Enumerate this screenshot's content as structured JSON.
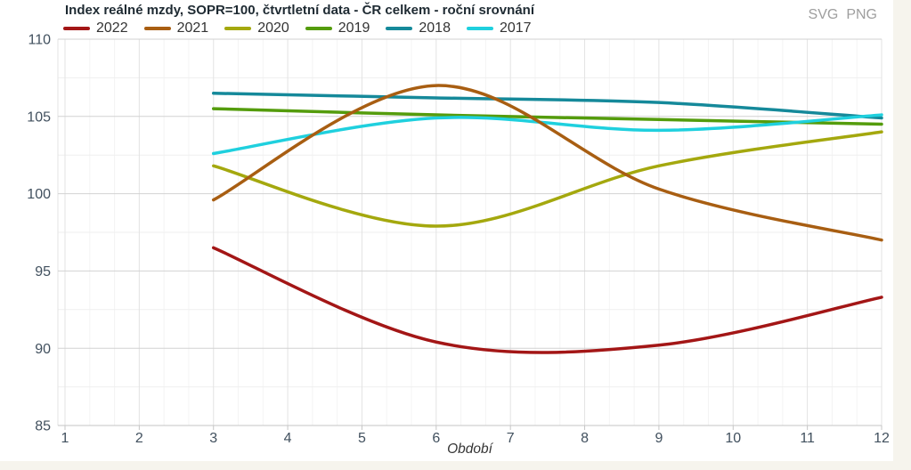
{
  "header": {
    "export_links": [
      {
        "label": "SVG"
      },
      {
        "label": "PNG"
      }
    ]
  },
  "chart_data": {
    "type": "line",
    "curve": "spline",
    "title": "Index reálné mzdy, SOPR=100, čtvrtletní data - ČR celkem - roční srovnání",
    "xlabel": "Období",
    "ylabel": "",
    "x": [
      3,
      6,
      9,
      12
    ],
    "xlim": [
      1,
      12
    ],
    "ylim": [
      85,
      110
    ],
    "x_ticks": [
      1,
      2,
      3,
      4,
      5,
      6,
      7,
      8,
      9,
      10,
      11,
      12
    ],
    "y_ticks": [
      85,
      90,
      95,
      100,
      105,
      110
    ],
    "grid": true,
    "legend_position": "top",
    "series": [
      {
        "name": "2022",
        "color": "#a31616",
        "values": [
          96.5,
          90.4,
          90.2,
          93.3
        ]
      },
      {
        "name": "2021",
        "color": "#a85e12",
        "values": [
          99.6,
          107.0,
          100.3,
          97.0
        ]
      },
      {
        "name": "2020",
        "color": "#a4a80e",
        "values": [
          101.8,
          97.9,
          101.8,
          104.0
        ]
      },
      {
        "name": "2019",
        "color": "#549c0c",
        "values": [
          105.5,
          105.1,
          104.8,
          104.5
        ]
      },
      {
        "name": "2018",
        "color": "#15899a",
        "values": [
          106.5,
          106.2,
          105.9,
          104.9
        ]
      },
      {
        "name": "2017",
        "color": "#1fd0de",
        "values": [
          102.6,
          104.9,
          104.1,
          105.1
        ]
      }
    ],
    "colors": {
      "grid_major_y": "#d2d2d2",
      "grid_minor_y": "#efefef",
      "grid_major_x": "#e3e3e3",
      "grid_minor_x": "#f4f4f4",
      "axis_line": "#c5c5c5",
      "tick_label": "#41505e"
    }
  }
}
